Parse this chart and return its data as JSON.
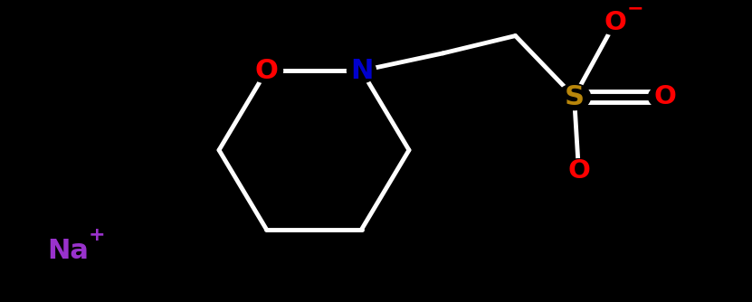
{
  "background_color": "#000000",
  "bond_color": "#ffffff",
  "atom_colors": {
    "O": "#ff0000",
    "N": "#0000cd",
    "S": "#b8860b",
    "Na": "#9932cc",
    "charge_minus": "#ff0000",
    "charge_plus": "#9932cc"
  },
  "bond_width": 3.5,
  "figsize": [
    8.31,
    3.34
  ],
  "dpi": 100
}
